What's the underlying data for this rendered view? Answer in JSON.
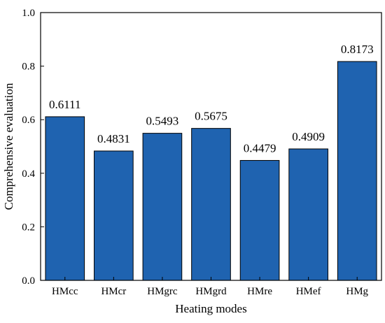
{
  "chart_data": {
    "type": "bar",
    "categories": [
      "HMcc",
      "HMcr",
      "HMgrc",
      "HMgrd",
      "HMre",
      "HMef",
      "HMg"
    ],
    "values": [
      0.6111,
      0.4831,
      0.5493,
      0.5675,
      0.4479,
      0.4909,
      0.8173
    ],
    "data_labels": [
      "0.6111",
      "0.4831",
      "0.5493",
      "0.5675",
      "0.4479",
      "0.4909",
      "0.8173"
    ],
    "xlabel": "Heating modes",
    "ylabel": "Comprehensive evaluation",
    "ylim": [
      0,
      1.0
    ],
    "yticks": [
      0.0,
      0.2,
      0.4,
      0.6,
      0.8,
      1.0
    ],
    "ytick_labels": [
      "0.0",
      "0.2",
      "0.4",
      "0.6",
      "0.8",
      "1.0"
    ],
    "grid": false,
    "bar_color": "#1f63b0",
    "bar_edge_color": "#000000"
  }
}
